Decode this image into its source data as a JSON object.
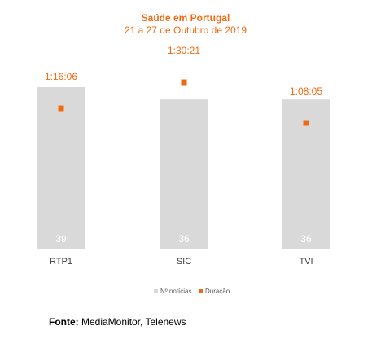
{
  "chart_data": {
    "type": "bar",
    "title": "Saúde em Portugal",
    "subtitle": "21 a 27 de Outubro de 2019",
    "categories": [
      "RTP1",
      "SIC",
      "TVI"
    ],
    "series": [
      {
        "name": "Nº notícias",
        "type": "bar",
        "color": "#D9D9D9",
        "values": [
          39,
          36,
          36
        ]
      },
      {
        "name": "Duração",
        "type": "scatter",
        "color": "#F26A0F",
        "values": [
          "1:16:06",
          "1:30:21",
          "1:08:05"
        ],
        "seconds": [
          4566,
          5421,
          4085
        ]
      }
    ],
    "legend_position": "bottom",
    "grid": false,
    "accent_color": "#F26A0F"
  },
  "source": {
    "label": "Fonte:",
    "text": "MediaMonitor, Telenews"
  }
}
